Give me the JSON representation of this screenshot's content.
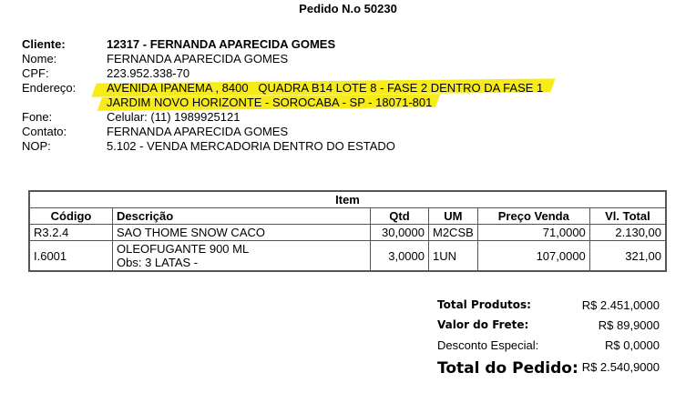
{
  "title": "Pedido N.o 50230",
  "customer": [
    {
      "label": "Cliente:",
      "value": "12317 - FERNANDA APARECIDA GOMES",
      "bold": true
    },
    {
      "label": "Nome:",
      "value": "FERNANDA APARECIDA GOMES"
    },
    {
      "label": "CPF:",
      "value": "223.952.338-70"
    },
    {
      "label": "Endereço:",
      "value": "AVENIDA IPANEMA , 8400   QUADRA B14 LOTE 8 - FASE 2 DENTRO DA FASE 1",
      "value2": "JARDIM NOVO HORIZONTE - SOROCABA - SP - 18071-801"
    },
    {
      "label": "Fone:",
      "value": "Celular: (11) 1989925121"
    },
    {
      "label": "Contato:",
      "value": "FERNANDA APARECIDA GOMES"
    },
    {
      "label": "NOP:",
      "value": "5.102 - VENDA MERCADORIA DENTRO DO ESTADO"
    }
  ],
  "highlight_color": "#f7ec1a",
  "items": {
    "caption": "Item",
    "columns": [
      "Código",
      "Descrição",
      "Qtd",
      "UM",
      "Preço Venda",
      "Vl. Total"
    ],
    "rows": [
      {
        "codigo": "R3.2.4",
        "descricao": "SAO THOME SNOW CACO",
        "obs": "",
        "qtd": "30,0000",
        "um": "M2CSB",
        "preco": "71,0000",
        "total": "2.130,00"
      },
      {
        "codigo": "I.6001",
        "descricao": "OLEOFUGANTE 900 ML",
        "obs": "Obs: 3 LATAS -",
        "qtd": "3,0000",
        "um": "1UN",
        "preco": "107,0000",
        "total": "321,00"
      }
    ]
  },
  "totals": {
    "produtos_label": "Total Produtos:",
    "produtos": "R$ 2.451,0000",
    "frete_label": "Valor do Frete:",
    "frete": "R$ 89,9000",
    "desconto_label": "Desconto Especial:",
    "desconto": "R$ 0,0000",
    "pedido_label": "Total do Pedido:",
    "pedido": "R$ 2.540,9000"
  }
}
